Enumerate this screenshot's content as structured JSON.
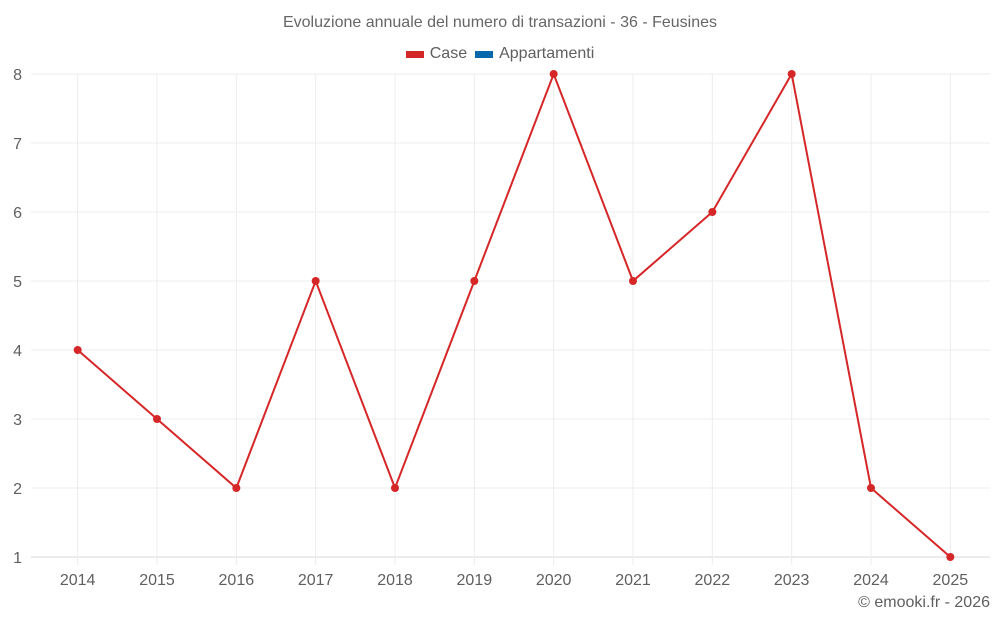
{
  "title": "Evoluzione annuale del numero di transazioni - 36 - Feusines",
  "legend": [
    {
      "label": "Case",
      "color": "#d62728"
    },
    {
      "label": "Appartamenti",
      "color": "#0868ac"
    }
  ],
  "credit": "© emooki.fr - 2026",
  "chart_data": {
    "type": "line",
    "title": "Evoluzione annuale del numero di transazioni - 36 - Feusines",
    "xlabel": "",
    "ylabel": "",
    "categories": [
      "2014",
      "2015",
      "2016",
      "2017",
      "2018",
      "2019",
      "2020",
      "2021",
      "2022",
      "2023",
      "2024",
      "2025"
    ],
    "series": [
      {
        "name": "Case",
        "color": "#d62728",
        "values": [
          4,
          3,
          2,
          5,
          2,
          5,
          8,
          5,
          6,
          8,
          2,
          1
        ]
      },
      {
        "name": "Appartamenti",
        "color": "#0868ac",
        "values": []
      }
    ],
    "ylim": [
      1,
      8
    ],
    "yticks": [
      1,
      2,
      3,
      4,
      5,
      6,
      7,
      8
    ],
    "grid": true,
    "legend_position": "top"
  }
}
